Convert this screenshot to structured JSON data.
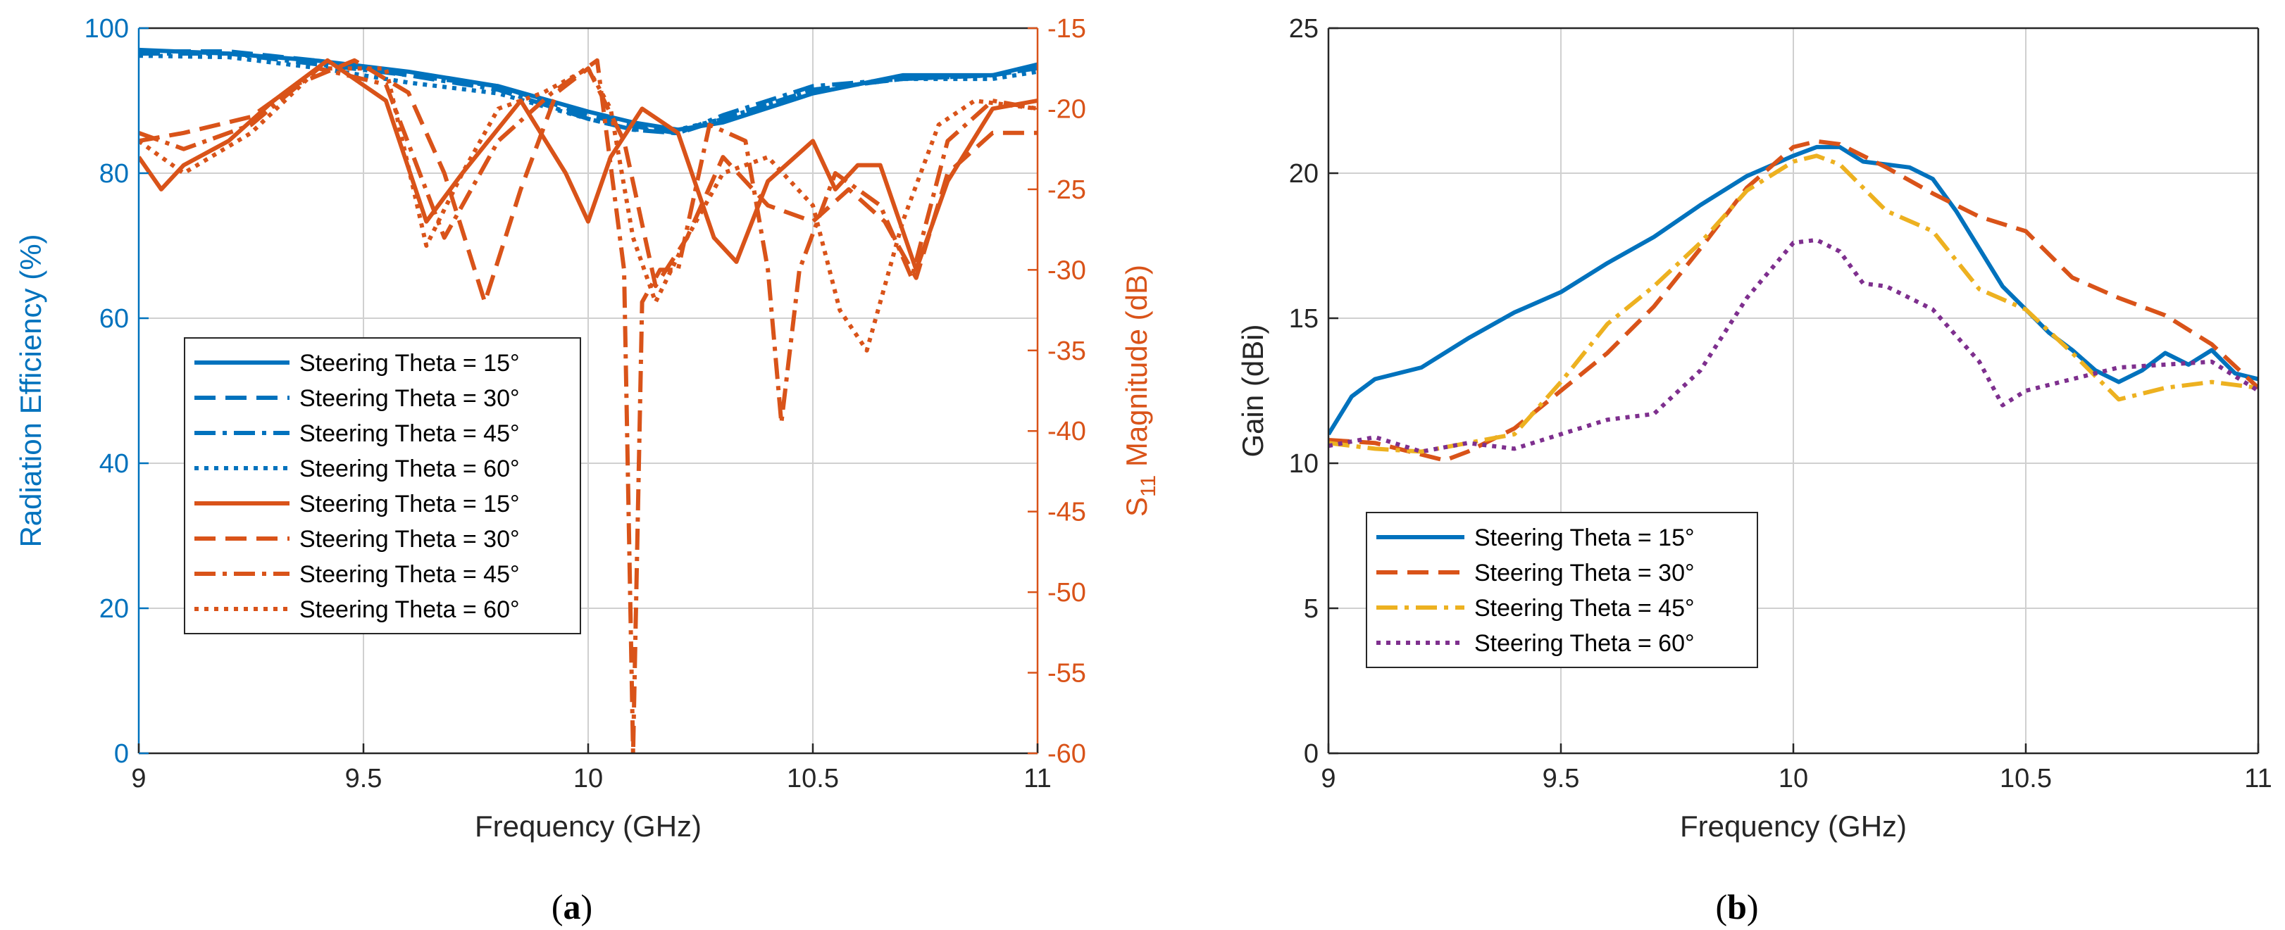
{
  "colors": {
    "blue": "#0072BD",
    "orange": "#D95319",
    "yellow": "#EDB120",
    "purple": "#7E2F8E",
    "grid": "#d0d0d0",
    "axis_black": "#262626"
  },
  "panels": {
    "a": {
      "label_open": "(",
      "label_letter": "a",
      "label_close": ")"
    },
    "b": {
      "label_open": "(",
      "label_letter": "b",
      "label_close": ")"
    }
  },
  "chart_data": [
    {
      "type": "line",
      "panel": "a",
      "title": "",
      "xlabel": "Frequency (GHz)",
      "ylabel_left": "Radiation Efficiency (%)",
      "ylabel_right_prefix": "S",
      "ylabel_right_sub": "11",
      "ylabel_right_suffix": " Magnitude (dB)",
      "xlim": [
        9,
        11
      ],
      "ylim_left": [
        0,
        100
      ],
      "ylim_right": [
        -60,
        -15
      ],
      "x_ticks": [
        9,
        9.5,
        10,
        10.5,
        11
      ],
      "x_tick_labels": [
        "9",
        "9.5",
        "10",
        "10.5",
        "11"
      ],
      "y_left_ticks": [
        0,
        20,
        40,
        60,
        80,
        100
      ],
      "y_left_tick_labels": [
        "0",
        "20",
        "40",
        "60",
        "80",
        "100"
      ],
      "y_right_ticks": [
        -60,
        -55,
        -50,
        -45,
        -40,
        -35,
        -30,
        -25,
        -20,
        -15
      ],
      "y_right_tick_labels": [
        "-60",
        "-55",
        "-50",
        "-45",
        "-40",
        "-35",
        "-30",
        "-25",
        "-20",
        "-15"
      ],
      "grid": true,
      "legend_position": "lower-left",
      "series": [
        {
          "name": "Steering Theta = 15°",
          "axis": "left",
          "color": "blue",
          "dash": "solid",
          "x": [
            9,
            9.2,
            9.4,
            9.6,
            9.8,
            10,
            10.1,
            10.2,
            10.3,
            10.5,
            10.7,
            10.9,
            11
          ],
          "y": [
            97,
            96.5,
            95.5,
            94,
            92,
            88.5,
            87,
            86,
            87,
            91,
            93.5,
            93.5,
            95
          ]
        },
        {
          "name": "Steering Theta = 30°",
          "axis": "left",
          "color": "blue",
          "dash": "dash",
          "x": [
            9,
            9.2,
            9.4,
            9.6,
            9.8,
            10,
            10.1,
            10.2,
            10.3,
            10.5,
            10.7,
            10.9,
            11
          ],
          "y": [
            96.8,
            96.8,
            95.5,
            93.5,
            92,
            88,
            86.5,
            85.5,
            87.5,
            91.5,
            93,
            93.5,
            94.5
          ]
        },
        {
          "name": "Steering Theta = 45°",
          "axis": "left",
          "color": "blue",
          "dash": "dashdot",
          "x": [
            9,
            9.2,
            9.4,
            9.6,
            9.8,
            10,
            10.1,
            10.2,
            10.3,
            10.5,
            10.7,
            10.9,
            11
          ],
          "y": [
            96.5,
            96.5,
            95,
            93.5,
            91.5,
            87.5,
            86,
            85.5,
            88,
            92,
            93,
            93.5,
            94.5
          ]
        },
        {
          "name": "Steering Theta = 60°",
          "axis": "left",
          "color": "blue",
          "dash": "dot",
          "x": [
            9,
            9.2,
            9.4,
            9.6,
            9.8,
            10,
            10.1,
            10.2,
            10.3,
            10.5,
            10.7,
            10.9,
            11
          ],
          "y": [
            96.2,
            96,
            94.5,
            92.5,
            91,
            87.5,
            86,
            86,
            87.5,
            91.5,
            93,
            93,
            94
          ]
        },
        {
          "name": "Steering Theta = 15°",
          "axis": "right",
          "color": "orange",
          "dash": "solid",
          "x": [
            9,
            9.05,
            9.1,
            9.2,
            9.3,
            9.42,
            9.55,
            9.64,
            9.72,
            9.85,
            9.95,
            10,
            10.05,
            10.12,
            10.2,
            10.28,
            10.33,
            10.4,
            10.5,
            10.55,
            10.6,
            10.65,
            10.73,
            10.8,
            10.9,
            11
          ],
          "y": [
            -23,
            -25,
            -23.5,
            -22,
            -19.5,
            -17,
            -19.5,
            -27,
            -24,
            -19.5,
            -24,
            -27,
            -23,
            -20,
            -21.5,
            -28,
            -29.5,
            -24.5,
            -22,
            -25,
            -23.5,
            -23.5,
            -30,
            -24.5,
            -20,
            -19.5
          ]
        },
        {
          "name": "Steering Theta = 30°",
          "axis": "right",
          "color": "orange",
          "dash": "dash",
          "x": [
            9,
            9.1,
            9.25,
            9.35,
            9.48,
            9.6,
            9.68,
            9.77,
            9.85,
            9.93,
            10,
            10.08,
            10.15,
            10.22,
            10.3,
            10.4,
            10.5,
            10.58,
            10.66,
            10.73,
            10.8,
            10.9,
            11
          ],
          "y": [
            -22,
            -21.5,
            -20.5,
            -18.5,
            -17,
            -19,
            -24,
            -32,
            -25,
            -19,
            -17.5,
            -22,
            -31,
            -28,
            -23,
            -26,
            -27,
            -25,
            -27,
            -30.5,
            -24,
            -21.5,
            -21.5
          ]
        },
        {
          "name": "Steering Theta = 45°",
          "axis": "right",
          "color": "orange",
          "dash": "dashdot",
          "x": [
            9,
            9.1,
            9.25,
            9.4,
            9.55,
            9.68,
            9.8,
            9.92,
            10.02,
            10.08,
            10.1,
            10.12,
            10.16,
            10.2,
            10.27,
            10.35,
            10.4,
            10.43,
            10.47,
            10.55,
            10.65,
            10.72,
            10.8,
            10.9,
            11
          ],
          "y": [
            -21.5,
            -22.5,
            -21,
            -17.5,
            -18.5,
            -28,
            -22,
            -19,
            -17,
            -30,
            -60,
            -32,
            -30,
            -30,
            -21,
            -22,
            -30,
            -39.5,
            -30,
            -24,
            -26,
            -30.5,
            -22,
            -19.5,
            -20
          ]
        },
        {
          "name": "Steering Theta = 60°",
          "axis": "right",
          "color": "orange",
          "dash": "dot",
          "x": [
            9,
            9.1,
            9.25,
            9.4,
            9.55,
            9.64,
            9.72,
            9.8,
            9.9,
            10,
            10.05,
            10.1,
            10.15,
            10.22,
            10.3,
            10.4,
            10.5,
            10.56,
            10.62,
            10.7,
            10.78,
            10.86,
            11
          ],
          "y": [
            -22,
            -24,
            -21.5,
            -17.5,
            -17.5,
            -28.5,
            -24,
            -20,
            -19,
            -17.5,
            -20,
            -28,
            -32,
            -28,
            -24,
            -23,
            -26,
            -32.5,
            -35,
            -27,
            -21,
            -19.5,
            -20
          ]
        }
      ]
    },
    {
      "type": "line",
      "panel": "b",
      "title": "",
      "xlabel": "Frequency (GHz)",
      "ylabel": "Gain (dBi)",
      "xlim": [
        9,
        11
      ],
      "ylim": [
        0,
        25
      ],
      "x_ticks": [
        9,
        9.5,
        10,
        10.5,
        11
      ],
      "x_tick_labels": [
        "9",
        "9.5",
        "10",
        "10.5",
        "11"
      ],
      "y_ticks": [
        0,
        5,
        10,
        15,
        20,
        25
      ],
      "y_tick_labels": [
        "0",
        "5",
        "10",
        "15",
        "20",
        "25"
      ],
      "grid": true,
      "legend_position": "lower-left",
      "series": [
        {
          "name": "Steering Theta = 15°",
          "color": "blue",
          "dash": "solid",
          "x": [
            9,
            9.05,
            9.1,
            9.2,
            9.3,
            9.4,
            9.5,
            9.6,
            9.7,
            9.8,
            9.9,
            10,
            10.05,
            10.1,
            10.15,
            10.2,
            10.25,
            10.3,
            10.35,
            10.4,
            10.45,
            10.5,
            10.55,
            10.6,
            10.65,
            10.7,
            10.75,
            10.8,
            10.85,
            10.9,
            10.95,
            11
          ],
          "y": [
            11,
            12.3,
            12.9,
            13.3,
            14.3,
            15.2,
            15.9,
            16.9,
            17.8,
            18.9,
            19.9,
            20.6,
            20.9,
            20.9,
            20.4,
            20.3,
            20.2,
            19.8,
            18.7,
            17.4,
            16.1,
            15.3,
            14.5,
            13.9,
            13.2,
            12.8,
            13.2,
            13.8,
            13.4,
            13.9,
            13.1,
            12.9
          ]
        },
        {
          "name": "Steering Theta = 30°",
          "color": "orange",
          "dash": "dash",
          "x": [
            9,
            9.1,
            9.2,
            9.25,
            9.3,
            9.4,
            9.5,
            9.6,
            9.7,
            9.8,
            9.9,
            10,
            10.05,
            10.1,
            10.2,
            10.3,
            10.4,
            10.5,
            10.6,
            10.7,
            10.8,
            10.9,
            11
          ],
          "y": [
            10.8,
            10.7,
            10.3,
            10.1,
            10.4,
            11.2,
            12.5,
            13.8,
            15.4,
            17.4,
            19.5,
            20.9,
            21.1,
            21.0,
            20.2,
            19.3,
            18.5,
            18.0,
            16.4,
            15.7,
            15.1,
            14.1,
            12.6
          ]
        },
        {
          "name": "Steering Theta = 45°",
          "color": "yellow",
          "dash": "dashdot",
          "x": [
            9,
            9.1,
            9.2,
            9.3,
            9.4,
            9.5,
            9.6,
            9.7,
            9.8,
            9.9,
            10,
            10.05,
            10.1,
            10.2,
            10.3,
            10.4,
            10.5,
            10.6,
            10.7,
            10.8,
            10.9,
            11
          ],
          "y": [
            10.7,
            10.5,
            10.4,
            10.7,
            11.0,
            12.8,
            14.8,
            16.1,
            17.6,
            19.4,
            20.4,
            20.6,
            20.3,
            18.7,
            18.0,
            16.0,
            15.3,
            13.8,
            12.2,
            12.6,
            12.8,
            12.6
          ]
        },
        {
          "name": "Steering Theta = 60°",
          "color": "purple",
          "dash": "dot",
          "x": [
            9,
            9.1,
            9.2,
            9.3,
            9.4,
            9.5,
            9.6,
            9.7,
            9.8,
            9.9,
            10,
            10.05,
            10.1,
            10.15,
            10.2,
            10.3,
            10.4,
            10.45,
            10.5,
            10.6,
            10.7,
            10.8,
            10.9,
            11
          ],
          "y": [
            10.6,
            10.9,
            10.4,
            10.7,
            10.5,
            11.0,
            11.5,
            11.7,
            13.2,
            15.7,
            17.6,
            17.7,
            17.3,
            16.2,
            16.1,
            15.3,
            13.5,
            12.0,
            12.5,
            12.9,
            13.3,
            13.4,
            13.5,
            12.5
          ]
        }
      ]
    }
  ]
}
